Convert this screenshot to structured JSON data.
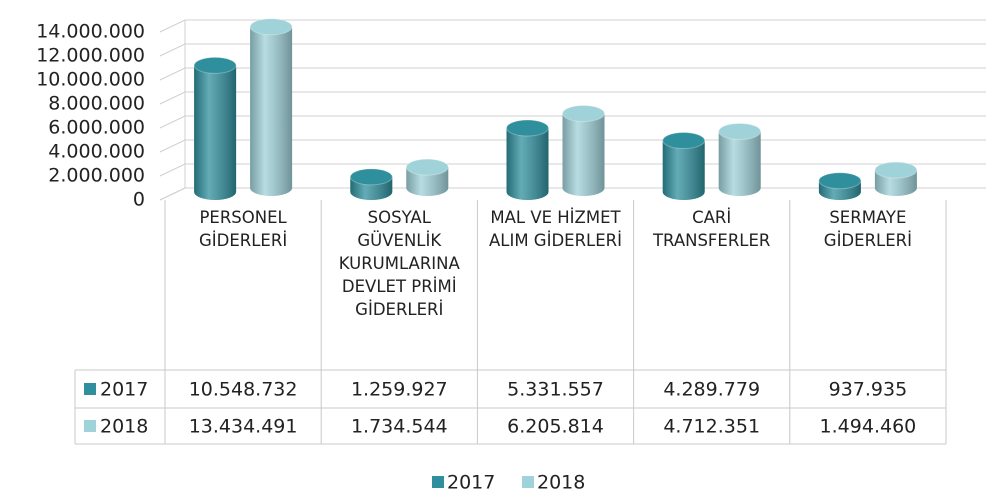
{
  "chart_data": {
    "type": "bar",
    "categories": [
      "PERSONEL GİDERLERİ",
      "SOSYAL GÜVENLİK KURUMLARINA DEVLET PRİMİ GİDERLERİ",
      "MAL VE HİZMET ALIM GİDERLERİ",
      "CARİ TRANSFERLER",
      "SERMAYE GİDERLERİ"
    ],
    "series": [
      {
        "name": "2017",
        "color": "#2f8f9d",
        "values": [
          10548732,
          1259927,
          5331557,
          4289779,
          937935
        ],
        "value_labels": [
          "10.548.732",
          "1.259.927",
          "5.331.557",
          "4.289.779",
          "937.935"
        ]
      },
      {
        "name": "2018",
        "color": "#9fd2d9",
        "values": [
          13434491,
          1734544,
          6205814,
          4712351,
          1494460
        ],
        "value_labels": [
          "13.434.491",
          "1.734.544",
          "6.205.814",
          "4.712.351",
          "1.494.460"
        ]
      }
    ],
    "ylim": [
      0,
      14000000
    ],
    "yticks": [
      0,
      {
        "value": 2000000,
        "label": "2.000.000"
      },
      {
        "value": 4000000,
        "label": "4.000.000"
      },
      {
        "value": 6000000,
        "label": "6.000.000"
      },
      {
        "value": 8000000,
        "label": "8.000.000"
      },
      {
        "value": 10000000,
        "label": "10.000.000"
      },
      {
        "value": 12000000,
        "label": "12.000.000"
      },
      {
        "value": 14000000,
        "label": "14.000.000"
      }
    ],
    "grid": true,
    "legend": "bottom"
  }
}
